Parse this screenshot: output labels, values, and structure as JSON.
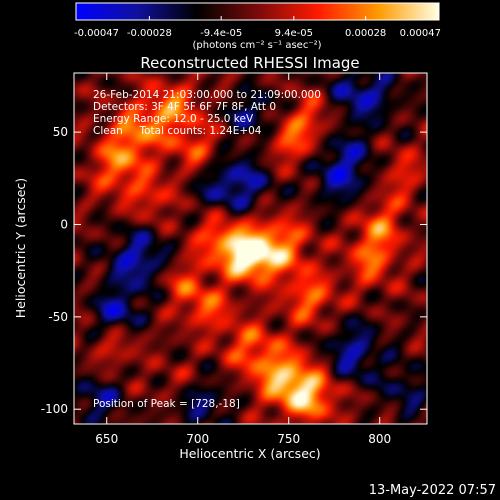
{
  "chart_data": {
    "type": "heatmap",
    "title": "Reconstructed RHESSI Image",
    "xlabel": "Heliocentric X (arcsec)",
    "ylabel": "Heliocentric Y (arcsec)",
    "xlim": [
      632,
      826
    ],
    "ylim": [
      -108,
      82
    ],
    "x_ticks": [
      650,
      700,
      750,
      800
    ],
    "y_ticks": [
      -100,
      -50,
      0,
      50
    ],
    "colorbar": {
      "range": [
        -0.00047,
        0.00047
      ],
      "tick_values": [
        -0.00047,
        -0.00028,
        -9.4e-05,
        9.4e-05,
        0.00028,
        0.00047
      ],
      "tick_labels": [
        "-0.00047",
        "-0.00028",
        "-9.4e-05",
        "9.4e-05",
        "0.00028",
        "0.00047"
      ],
      "units_label": "(photons cm⁻² s⁻¹ asec⁻²)",
      "colormap": [
        "#0000ff",
        "#1010a0",
        "#000000",
        "#7a0a0a",
        "#ff1a00",
        "#ff9a00",
        "#ffffe6"
      ]
    },
    "annotations": [
      "26-Feb-2014 21:03:00.000 to 21:09:00.000",
      "Detectors: 3F 4F 5F 6F 7F 8F, Att 0",
      "Energy Range: 12.0 - 25.0 keV",
      "Clean     Total counts: 1.24E+04"
    ],
    "peak_label": "Position of Peak = [728,-18]",
    "peak": [
      728,
      -18
    ],
    "background_level": -4e-05,
    "sources": [
      {
        "x": 728,
        "y": -18,
        "amp": 0.00047,
        "sx": 9,
        "sy": 8
      },
      {
        "x": 715,
        "y": -8,
        "amp": 0.0003,
        "sx": 12,
        "sy": 10
      },
      {
        "x": 745,
        "y": -12,
        "amp": 0.00032,
        "sx": 11,
        "sy": 12
      },
      {
        "x": 762,
        "y": -40,
        "amp": 0.00026,
        "sx": 10,
        "sy": 10
      },
      {
        "x": 705,
        "y": -45,
        "amp": 0.00024,
        "sx": 10,
        "sy": 9
      },
      {
        "x": 690,
        "y": -30,
        "amp": 0.0002,
        "sx": 9,
        "sy": 8
      },
      {
        "x": 760,
        "y": -92,
        "amp": 0.0004,
        "sx": 12,
        "sy": 10
      },
      {
        "x": 745,
        "y": -80,
        "amp": 0.0003,
        "sx": 12,
        "sy": 10
      },
      {
        "x": 728,
        "y": -65,
        "amp": 0.00022,
        "sx": 10,
        "sy": 9
      },
      {
        "x": 685,
        "y": 62,
        "amp": 0.0003,
        "sx": 11,
        "sy": 10
      },
      {
        "x": 665,
        "y": 48,
        "amp": 0.00028,
        "sx": 10,
        "sy": 10
      },
      {
        "x": 655,
        "y": 30,
        "amp": 0.00026,
        "sx": 9,
        "sy": 10
      },
      {
        "x": 700,
        "y": 40,
        "amp": 0.00022,
        "sx": 10,
        "sy": 9
      },
      {
        "x": 675,
        "y": 15,
        "amp": 0.0002,
        "sx": 9,
        "sy": 9
      },
      {
        "x": 752,
        "y": 45,
        "amp": 0.00025,
        "sx": 10,
        "sy": 10
      },
      {
        "x": 765,
        "y": 60,
        "amp": 0.0002,
        "sx": 9,
        "sy": 9
      },
      {
        "x": 800,
        "y": 0,
        "amp": 0.00025,
        "sx": 9,
        "sy": 12
      },
      {
        "x": 795,
        "y": -20,
        "amp": 0.00022,
        "sx": 9,
        "sy": 10
      },
      {
        "x": 812,
        "y": 28,
        "amp": 0.00018,
        "sx": 8,
        "sy": 9
      },
      {
        "x": 655,
        "y": -65,
        "amp": 0.00016,
        "sx": 9,
        "sy": 9
      },
      {
        "x": 690,
        "y": -88,
        "amp": 0.00014,
        "sx": 10,
        "sy": 8
      },
      {
        "x": 668,
        "y": -20,
        "amp": -0.0003,
        "sx": 12,
        "sy": 12
      },
      {
        "x": 655,
        "y": -48,
        "amp": -0.00028,
        "sx": 9,
        "sy": 9
      },
      {
        "x": 720,
        "y": 22,
        "amp": -0.0003,
        "sx": 14,
        "sy": 12
      },
      {
        "x": 780,
        "y": 30,
        "amp": -0.0003,
        "sx": 12,
        "sy": 14
      },
      {
        "x": 790,
        "y": 70,
        "amp": -0.00028,
        "sx": 14,
        "sy": 10
      },
      {
        "x": 785,
        "y": -70,
        "amp": -0.00026,
        "sx": 12,
        "sy": 12
      },
      {
        "x": 700,
        "y": -95,
        "amp": -0.00024,
        "sx": 12,
        "sy": 9
      },
      {
        "x": 730,
        "y": 60,
        "amp": -0.00022,
        "sx": 10,
        "sy": 9
      },
      {
        "x": 645,
        "y": -95,
        "amp": -0.00022,
        "sx": 10,
        "sy": 9
      },
      {
        "x": 815,
        "y": -90,
        "amp": -0.00018,
        "sx": 9,
        "sy": 10
      }
    ]
  },
  "footer": {
    "timestamp": "13-May-2022 07:57"
  }
}
